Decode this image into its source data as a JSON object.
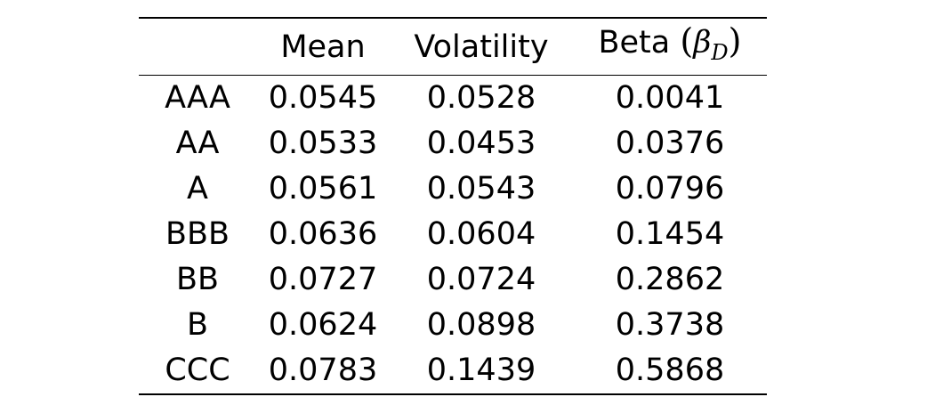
{
  "table": {
    "headers": [
      "",
      "Mean",
      "Volatility",
      "Beta"
    ],
    "beta_symbol": "β",
    "beta_subscript": "D",
    "paren_open": "(",
    "paren_close": ")",
    "rows": [
      {
        "rating": "AAA",
        "mean": "0.0545",
        "volatility": "0.0528",
        "beta": "0.0041"
      },
      {
        "rating": "AA",
        "mean": "0.0533",
        "volatility": "0.0453",
        "beta": "0.0376"
      },
      {
        "rating": "A",
        "mean": "0.0561",
        "volatility": "0.0543",
        "beta": "0.0796"
      },
      {
        "rating": "BBB",
        "mean": "0.0636",
        "volatility": "0.0604",
        "beta": "0.1454"
      },
      {
        "rating": "BB",
        "mean": "0.0727",
        "volatility": "0.0724",
        "beta": "0.2862"
      },
      {
        "rating": "B",
        "mean": "0.0624",
        "volatility": "0.0898",
        "beta": "0.3738"
      },
      {
        "rating": "CCC",
        "mean": "0.0783",
        "volatility": "0.1439",
        "beta": "0.5868"
      }
    ]
  }
}
